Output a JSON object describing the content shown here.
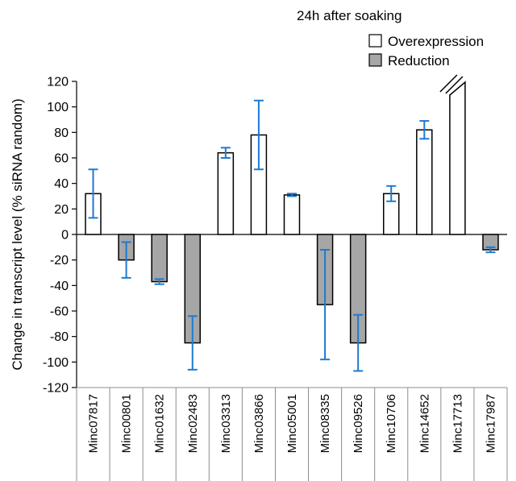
{
  "chart_data": {
    "type": "bar",
    "title": "24h after soaking",
    "xlabel": "",
    "ylabel": "Change in transcript level (% siRNA random)",
    "ylim": [
      -120,
      120
    ],
    "yticks": [
      120,
      100,
      80,
      60,
      40,
      20,
      0,
      -20,
      -40,
      -60,
      -80,
      -100,
      -120
    ],
    "categories": [
      "Minc07817",
      "Minc00801",
      "Minc01632",
      "Minc02483",
      "Minc03313",
      "Minc03866",
      "Minc05001",
      "Minc08335",
      "Minc09526",
      "Minc10706",
      "Minc14652",
      "Minc17713",
      "Minc17987"
    ],
    "values": [
      32,
      -20,
      -37,
      -85,
      64,
      78,
      31,
      -55,
      -85,
      32,
      82,
      120,
      -12
    ],
    "error": [
      19,
      14,
      2,
      21,
      4,
      27,
      1,
      43,
      22,
      6,
      7,
      0,
      2
    ],
    "kind": [
      "over",
      "red",
      "red",
      "red",
      "over",
      "over",
      "over",
      "red",
      "red",
      "over",
      "over",
      "over",
      "red"
    ],
    "broken_axis_category": "Minc17713",
    "legend": {
      "position": "top-right",
      "items": [
        {
          "label": "Overexpression",
          "color": "#ffffff"
        },
        {
          "label": "Reduction",
          "color": "#a6a6a6"
        }
      ]
    },
    "colors": {
      "overexpression": "#ffffff",
      "reduction": "#a6a6a6",
      "error_bar": "#1f7ad1"
    },
    "grid": false
  }
}
